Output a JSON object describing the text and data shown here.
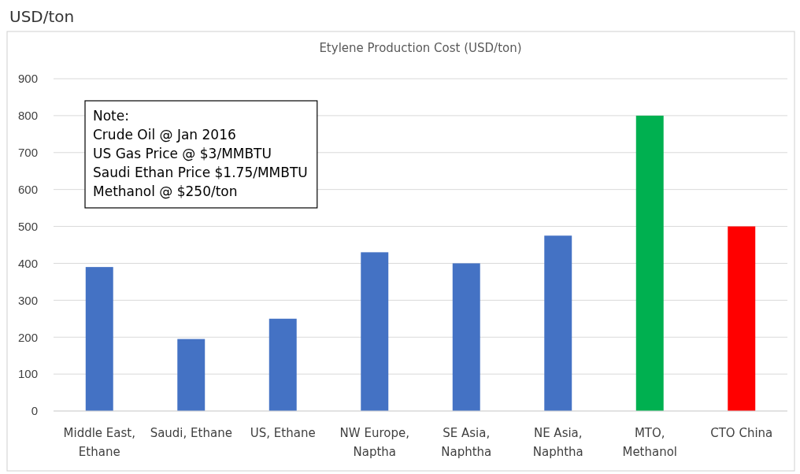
{
  "chart_data": {
    "type": "bar",
    "title": "Etylene Production Cost (USD/ton)",
    "ylabel": "USD/ton",
    "categories": [
      "Middle East, Ethane",
      "Saudi, Ethane",
      "US, Ethane",
      "NW Europe, Naptha",
      "SE Asia, Naphtha",
      "NE Asia, Naphtha",
      "MTO, Methanol",
      "CTO China"
    ],
    "values": [
      390,
      195,
      250,
      430,
      400,
      475,
      800,
      500
    ],
    "colors": [
      "#4472c4",
      "#4472c4",
      "#4472c4",
      "#4472c4",
      "#4472c4",
      "#4472c4",
      "#00b050",
      "#ff0000"
    ],
    "ylim": [
      0,
      900
    ],
    "yticks": [
      0,
      100,
      200,
      300,
      400,
      500,
      600,
      700,
      800,
      900
    ],
    "grid": "y",
    "annotations": [
      "Note:",
      "Crude Oil @ Jan 2016",
      "US Gas Price @ $3/MMBTU",
      "Saudi Ethan Price  $1.75/MMBTU",
      "Methanol @ $250/ton"
    ]
  }
}
